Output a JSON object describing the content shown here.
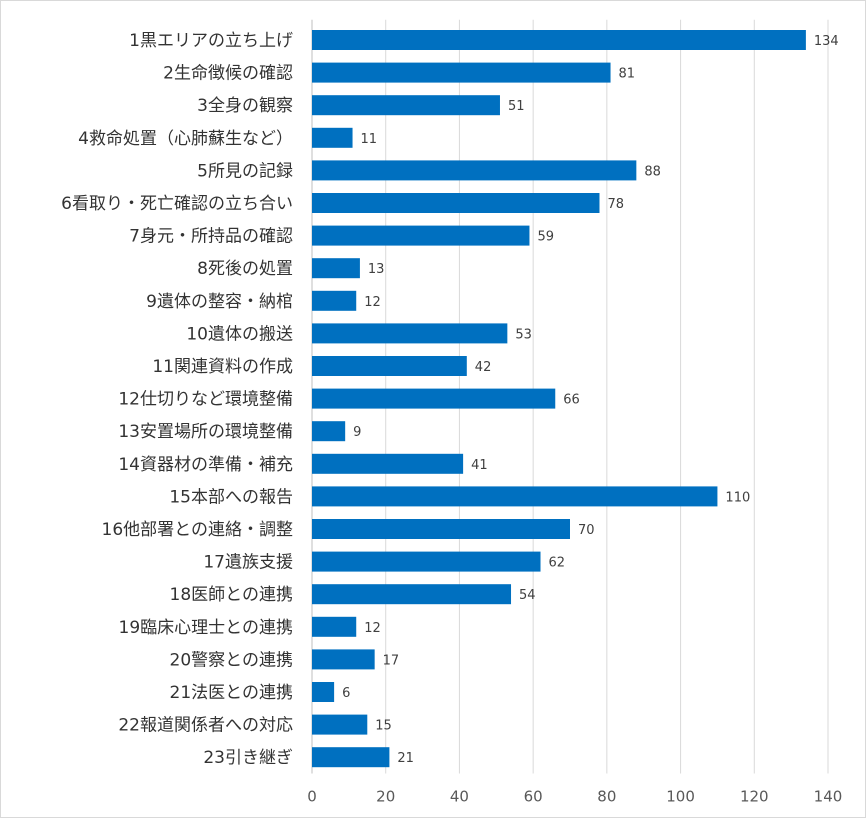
{
  "chart_data": {
    "type": "bar",
    "orientation": "horizontal",
    "categories": [
      "1黒エリアの立ち上げ",
      "2生命徴候の確認",
      "3全身の観察",
      "4救命処置（心肺蘇生など）",
      "5所見の記録",
      "6看取り・死亡確認の立ち合い",
      "7身元・所持品の確認",
      "8死後の処置",
      "9遺体の整容・納棺",
      "10遺体の搬送",
      "11関連資料の作成",
      "12仕切りなど環境整備",
      "13安置場所の環境整備",
      "14資器材の準備・補充",
      "15本部への報告",
      "16他部署との連絡・調整",
      "17遺族支援",
      "18医師との連携",
      "19臨床心理士との連携",
      "20警察との連携",
      "21法医との連携",
      "22報道関係者への対応",
      "23引き継ぎ"
    ],
    "values": [
      134,
      81,
      51,
      11,
      88,
      78,
      59,
      13,
      12,
      53,
      42,
      66,
      9,
      41,
      110,
      70,
      62,
      54,
      12,
      17,
      6,
      15,
      21
    ],
    "xlim": [
      0,
      140
    ],
    "x_ticks": [
      0,
      20,
      40,
      60,
      80,
      100,
      120,
      140
    ],
    "grid": "vertical",
    "bar_color": "#0070c0",
    "data_labels": true,
    "legend": "none"
  }
}
